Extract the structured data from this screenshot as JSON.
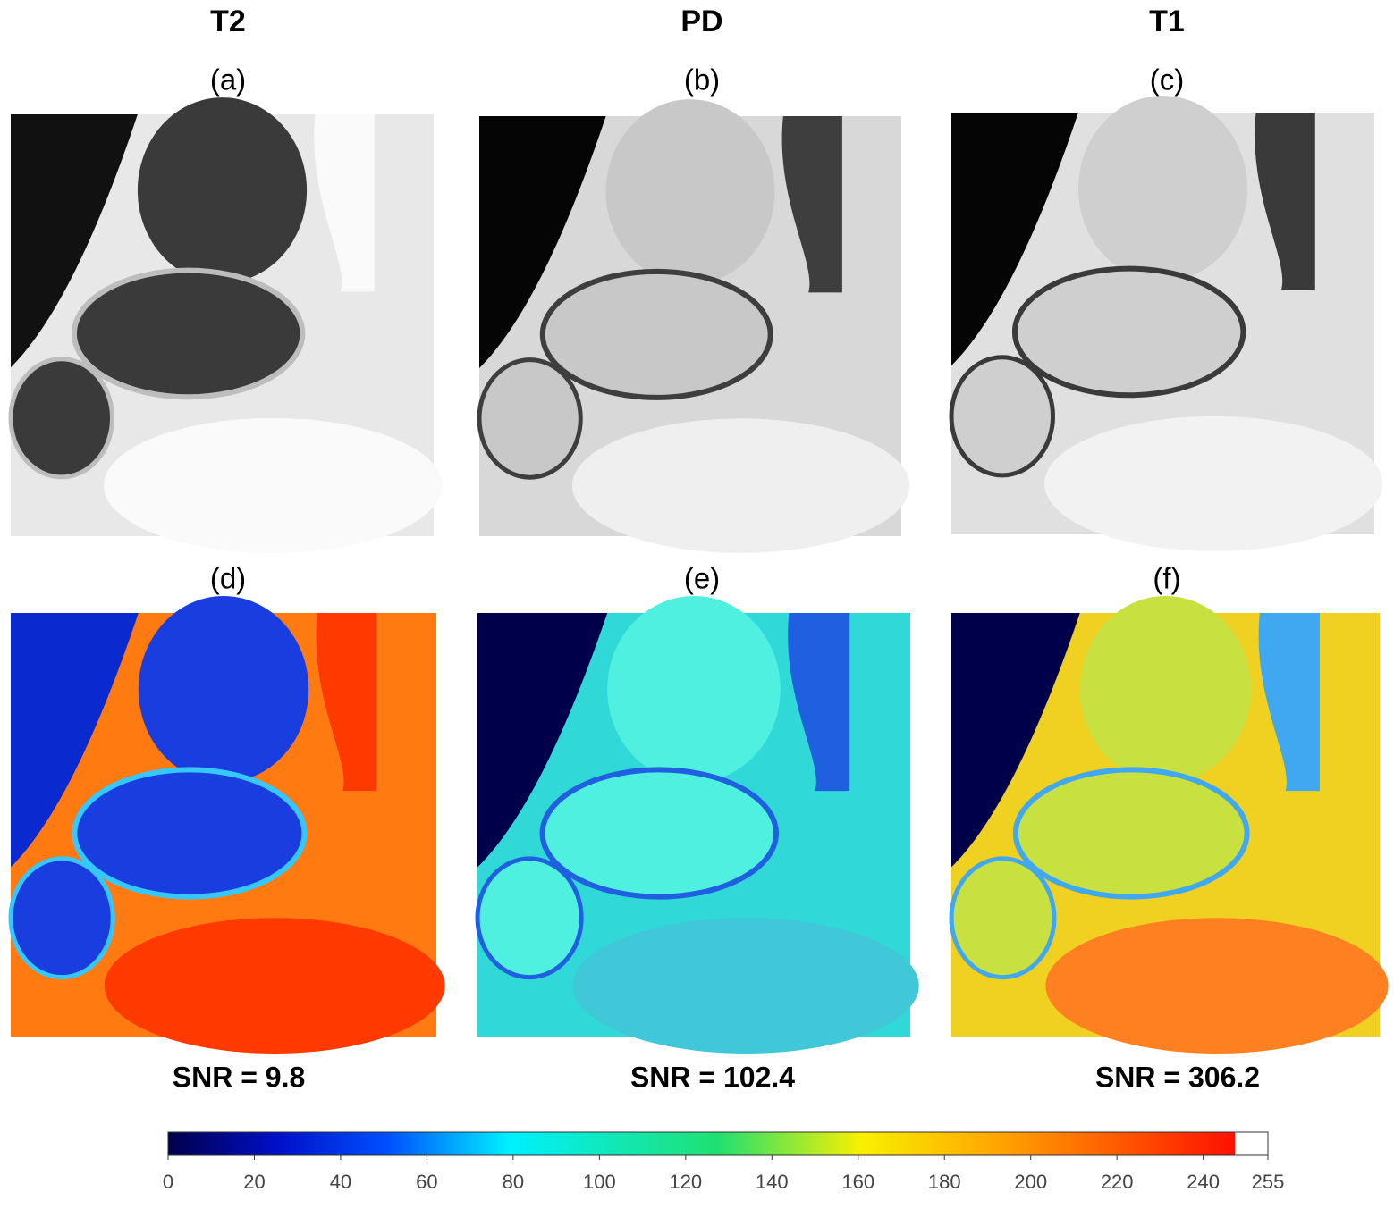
{
  "columns": [
    {
      "title": "T2",
      "top_label": "(a)",
      "bottom_label": "(d)",
      "snr": "SNR = 9.8"
    },
    {
      "title": "PD",
      "top_label": "(b)",
      "bottom_label": "(e)",
      "snr": "SNR = 102.4"
    },
    {
      "title": "T1",
      "top_label": "(c)",
      "bottom_label": "(f)",
      "snr": "SNR = 306.2"
    }
  ],
  "colorbar": {
    "lim": [
      0,
      255
    ],
    "ticks": [
      0,
      20,
      40,
      60,
      80,
      100,
      120,
      140,
      160,
      180,
      200,
      220,
      240,
      255
    ]
  }
}
